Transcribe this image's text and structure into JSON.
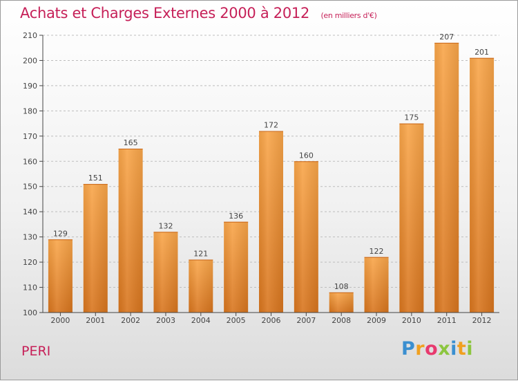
{
  "header": {
    "title": "Achats et Charges Externes 2000 à 2012",
    "unit": "(en milliers d'€)"
  },
  "footer": {
    "commune": "PERI",
    "logo_letters": [
      "P",
      "r",
      "o",
      "x",
      "i",
      "t",
      "i"
    ],
    "logo_colors": [
      "#3a8fd0",
      "#f0a020",
      "#e83a6e",
      "#8cc63f",
      "#3a8fd0",
      "#f0a020",
      "#8cc63f"
    ]
  },
  "colors": {
    "bar_light": "#f9a64a",
    "bar_dark": "#d8751e",
    "axis": "#444444",
    "grid": "#bdbdbd"
  },
  "chart_data": {
    "type": "bar",
    "categories": [
      "2000",
      "2001",
      "2002",
      "2003",
      "2004",
      "2005",
      "2006",
      "2007",
      "2008",
      "2009",
      "2010",
      "2011",
      "2012"
    ],
    "values": [
      129,
      151,
      165,
      132,
      121,
      136,
      172,
      160,
      108,
      122,
      175,
      207,
      201
    ],
    "ylim": [
      100,
      210
    ],
    "yticks": [
      100,
      110,
      120,
      130,
      140,
      150,
      160,
      170,
      180,
      190,
      200,
      210
    ],
    "grid": "horizontal dashed",
    "data_labels": true
  }
}
